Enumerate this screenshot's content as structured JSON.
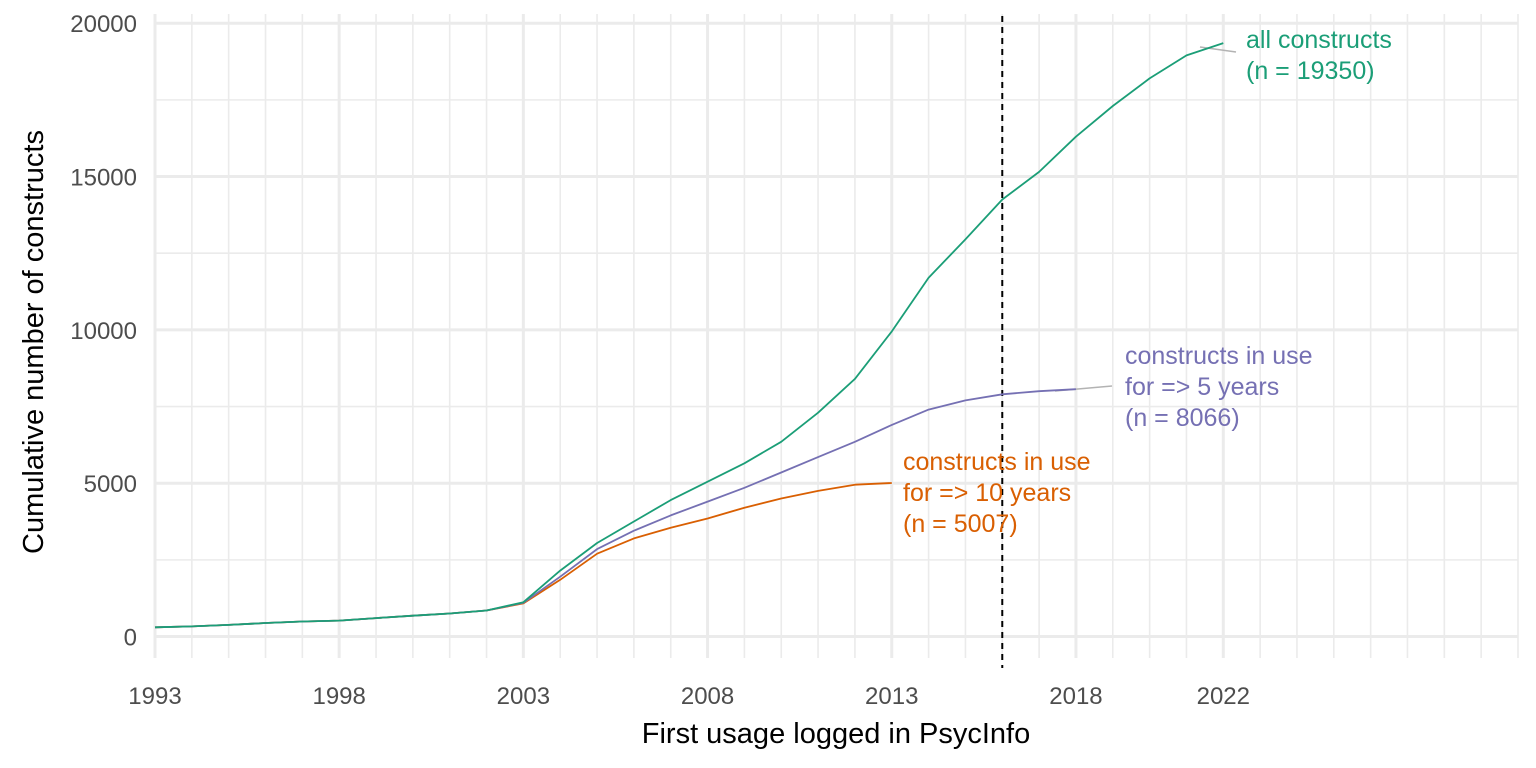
{
  "chart_data": {
    "type": "line",
    "xlabel": "First usage logged in PsycInfo",
    "ylabel": "Cumulative number of constructs",
    "xlim": [
      1993,
      2030
    ],
    "ylim": [
      -700,
      20300
    ],
    "x_ticks": [
      1993,
      1998,
      2003,
      2008,
      2013,
      2018,
      2022
    ],
    "x_tick_labels": [
      "1993",
      "1998",
      "2003",
      "2008",
      "2013",
      "2018",
      "2022"
    ],
    "y_ticks": [
      0,
      5000,
      10000,
      15000,
      20000
    ],
    "y_tick_labels": [
      "0",
      "5000",
      "10000",
      "15000",
      "20000"
    ],
    "grid": true,
    "reference_line": {
      "x": 2016,
      "style": "dashed"
    },
    "series": [
      {
        "key": "all",
        "color": "#1b9e77",
        "x": [
          1993,
          1994,
          1995,
          1996,
          1997,
          1998,
          1999,
          2000,
          2001,
          2002,
          2003,
          2004,
          2005,
          2006,
          2007,
          2008,
          2009,
          2010,
          2011,
          2012,
          2013,
          2014,
          2015,
          2016,
          2017,
          2018,
          2019,
          2020,
          2021,
          2022
        ],
        "values": [
          300,
          330,
          380,
          440,
          490,
          520,
          600,
          680,
          750,
          850,
          1120,
          2150,
          3050,
          3750,
          4450,
          5050,
          5650,
          6350,
          7300,
          8400,
          9950,
          11700,
          12950,
          14250,
          15150,
          16300,
          17300,
          18200,
          18950,
          19350
        ],
        "label_lines": [
          "all constructs",
          "(n = 19350)"
        ],
        "label_anchor": {
          "x": 2022,
          "y": 19350
        }
      },
      {
        "key": "use5",
        "color": "#7570b3",
        "x": [
          1993,
          1994,
          1995,
          1996,
          1997,
          1998,
          1999,
          2000,
          2001,
          2002,
          2003,
          2004,
          2005,
          2006,
          2007,
          2008,
          2009,
          2010,
          2011,
          2012,
          2013,
          2014,
          2015,
          2016,
          2017,
          2018
        ],
        "values": [
          300,
          330,
          380,
          440,
          490,
          520,
          600,
          680,
          750,
          850,
          1100,
          1950,
          2850,
          3450,
          3950,
          4400,
          4850,
          5350,
          5850,
          6350,
          6900,
          7400,
          7700,
          7900,
          8000,
          8066
        ],
        "label_lines": [
          "constructs in use",
          "for => 5 years",
          "(n = 8066)"
        ],
        "label_anchor": {
          "x": 2018,
          "y": 8066
        }
      },
      {
        "key": "use10",
        "color": "#d95f02",
        "x": [
          1993,
          1994,
          1995,
          1996,
          1997,
          1998,
          1999,
          2000,
          2001,
          2002,
          2003,
          2004,
          2005,
          2006,
          2007,
          2008,
          2009,
          2010,
          2011,
          2012,
          2013
        ],
        "values": [
          300,
          330,
          380,
          440,
          490,
          520,
          600,
          680,
          750,
          850,
          1080,
          1850,
          2700,
          3200,
          3550,
          3850,
          4200,
          4500,
          4750,
          4950,
          5007
        ],
        "label_lines": [
          "constructs in use",
          "for => 10 years",
          "(n = 5007)"
        ],
        "label_anchor": {
          "x": 2013,
          "y": 5007
        }
      }
    ]
  }
}
